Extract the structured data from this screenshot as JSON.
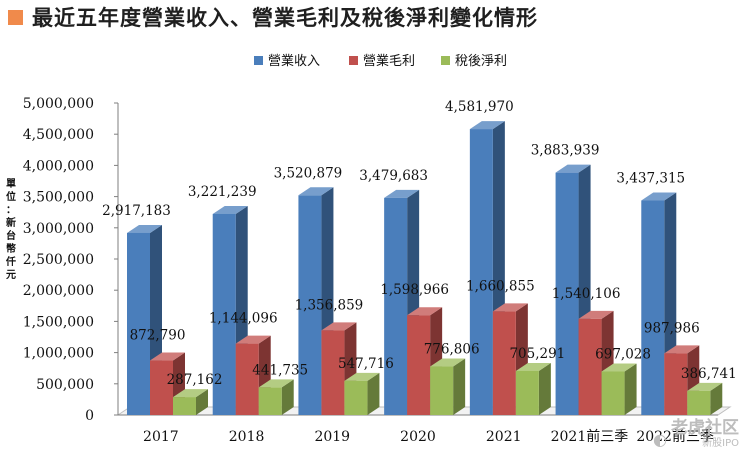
{
  "title": "最近五年度營業收入、營業毛利及稅後淨利變化情形",
  "title_marker_color": "#f08a4b",
  "unit_label": "單位：新台幣仟元",
  "watermark": {
    "icon": "tiger-logo-icon",
    "text": "老虎社区",
    "subtext": "新股IPO"
  },
  "colors": {
    "revenue": "#4a7ebb",
    "gross_profit": "#c0504d",
    "net_income": "#9bbb59"
  },
  "chart_data": {
    "type": "bar",
    "title": "最近五年度營業收入、營業毛利及稅後淨利變化情形",
    "xlabel": "",
    "ylabel": "單位：新台幣仟元",
    "categories": [
      "2017",
      "2018",
      "2019",
      "2020",
      "2021",
      "2021前三季",
      "2022前三季"
    ],
    "series": [
      {
        "name": "營業收入",
        "color": "#4a7ebb",
        "values": [
          2917183,
          3221239,
          3520879,
          3479683,
          4581970,
          3883939,
          3437315
        ],
        "labels": [
          "2,917,183",
          "3,221,239",
          "3,520,879",
          "3,479,683",
          "4,581,970",
          "3,883,939",
          "3,437,315"
        ]
      },
      {
        "name": "營業毛利",
        "color": "#c0504d",
        "values": [
          872790,
          1144096,
          1356859,
          1598966,
          1660855,
          1540106,
          987986
        ],
        "labels": [
          "872,790",
          "1,144,096",
          "1,356,859",
          "1,598,966",
          "1,660,855",
          "1,540,106",
          "987,986"
        ]
      },
      {
        "name": "稅後淨利",
        "color": "#9bbb59",
        "values": [
          287162,
          441735,
          547716,
          776806,
          705291,
          697028,
          386741
        ],
        "labels": [
          "287,162",
          "441,735",
          "547,716",
          "776,806",
          "705,291",
          "697,028",
          "386,741"
        ]
      }
    ],
    "ylim": [
      0,
      5000000
    ],
    "yticks": [
      0,
      500000,
      1000000,
      1500000,
      2000000,
      2500000,
      3000000,
      3500000,
      4000000,
      4500000,
      5000000
    ],
    "ytick_labels": [
      "0",
      "500,000",
      "1,000,000",
      "1,500,000",
      "2,000,000",
      "2,500,000",
      "3,000,000",
      "3,500,000",
      "4,000,000",
      "4,500,000",
      "5,000,000"
    ],
    "legend_position": "top-center",
    "style": "3d-clustered-column",
    "grid": false
  }
}
